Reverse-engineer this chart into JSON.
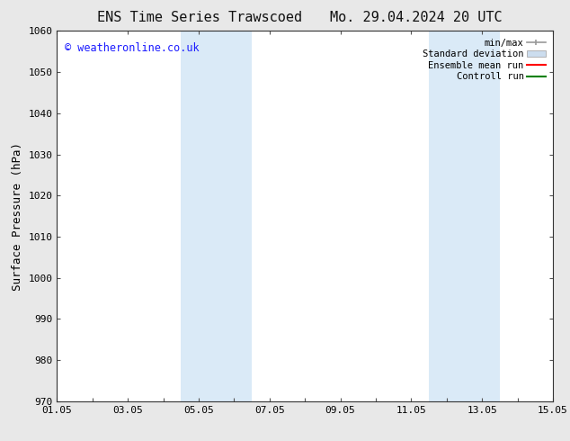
{
  "title_left": "ENS Time Series Trawscoed",
  "title_right": "Mo. 29.04.2024 20 UTC",
  "ylabel": "Surface Pressure (hPa)",
  "ylim": [
    970,
    1060
  ],
  "yticks": [
    970,
    980,
    990,
    1000,
    1010,
    1020,
    1030,
    1040,
    1050,
    1060
  ],
  "xlim_start": 0,
  "xlim_end": 14,
  "xtick_positions": [
    0,
    2,
    4,
    6,
    8,
    10,
    12,
    14
  ],
  "xtick_labels": [
    "01.05",
    "03.05",
    "05.05",
    "07.05",
    "09.05",
    "11.05",
    "13.05",
    "15.05"
  ],
  "shaded_bands": [
    {
      "x_start": 3.5,
      "x_end": 5.5
    },
    {
      "x_start": 10.5,
      "x_end": 12.5
    }
  ],
  "shaded_color": "#daeaf7",
  "copyright_text": "© weatheronline.co.uk",
  "copyright_color": "#1a1aff",
  "copyright_fontsize": 8.5,
  "title_fontsize": 11,
  "legend_labels": [
    "min/max",
    "Standard deviation",
    "Ensemble mean run",
    "Controll run"
  ],
  "legend_line_colors": [
    "#999999",
    "#cccccc",
    "#ff0000",
    "#008000"
  ],
  "bg_color": "#e8e8e8",
  "plot_bg_color": "#ffffff",
  "grid_color": "#cccccc",
  "tick_label_fontsize": 8,
  "ylabel_fontsize": 9
}
